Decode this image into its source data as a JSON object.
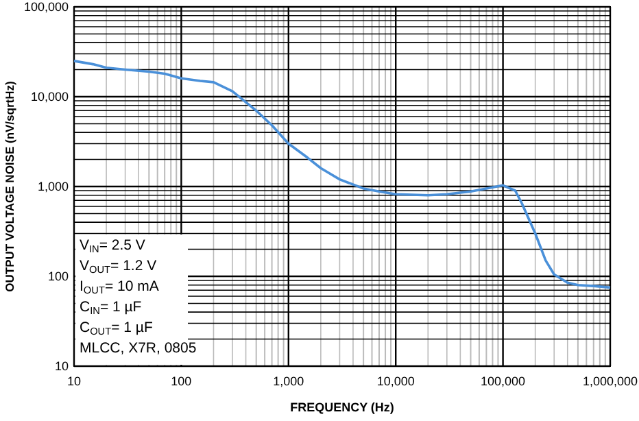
{
  "chart_data": {
    "type": "line",
    "xlabel": "FREQUENCY (Hz)",
    "ylabel": "OUTPUT VOLTAGE NOISE (nV/sqrtHz)",
    "log": "xy",
    "grid": true,
    "xlim": [
      10,
      1000000
    ],
    "ylim": [
      10,
      100000
    ],
    "xticks": [
      10,
      100,
      {
        "value": 1000,
        "label": "1,000"
      },
      {
        "value": 10000,
        "label": "10,000"
      },
      {
        "value": 100000,
        "label": "100,000"
      },
      {
        "value": 1000000,
        "label": "1,000,000"
      }
    ],
    "yticks": [
      10,
      100,
      {
        "value": 1000,
        "label": "1,000"
      },
      {
        "value": 10000,
        "label": "10,000"
      },
      {
        "value": 100000,
        "label": "100,000"
      }
    ],
    "annotations": [
      "V$_{IN}$= 2.5 V",
      "V$_{OUT}$= 1.2 V",
      "I$_{OUT}$= 10 mA",
      "C$_{IN}$= 1 µF",
      "C$_{OUT}$= 1 µF",
      "MLCC, X7R, 0805"
    ],
    "x": [
      10,
      15,
      20,
      30,
      50,
      70,
      100,
      150,
      200,
      300,
      500,
      700,
      1000,
      1500,
      2000,
      3000,
      5000,
      7000,
      10000,
      20000,
      30000,
      50000,
      70000,
      100000,
      130000,
      150000,
      200000,
      250000,
      300000,
      400000,
      500000,
      700000,
      1000000
    ],
    "series": [
      {
        "color": "#4a90d9",
        "values": [
          25000,
          23000,
          21000,
          20000,
          19000,
          18000,
          16000,
          15000,
          14500,
          11500,
          7000,
          4800,
          3000,
          2100,
          1600,
          1200,
          950,
          880,
          820,
          800,
          820,
          880,
          950,
          1030,
          900,
          650,
          300,
          150,
          105,
          85,
          80,
          78,
          75
        ]
      }
    ]
  }
}
